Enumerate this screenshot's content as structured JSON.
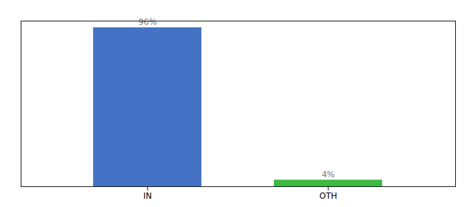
{
  "chart_data": {
    "type": "bar",
    "categories": [
      "IN",
      "OTH"
    ],
    "values": [
      96,
      4
    ],
    "value_labels": [
      "96%",
      "4%"
    ],
    "colors": [
      "#4472c4",
      "#3cb943"
    ],
    "ylim": [
      0,
      100
    ],
    "data_labels": true,
    "tick_labels": "x"
  }
}
